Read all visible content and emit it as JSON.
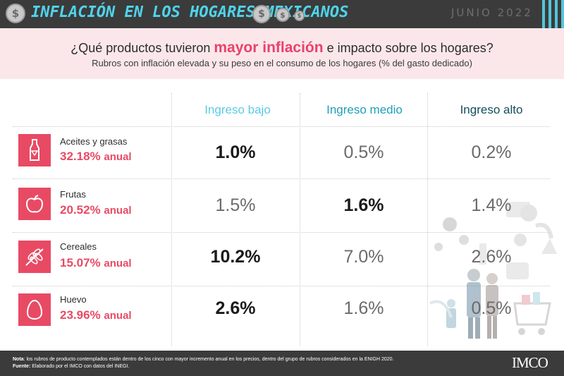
{
  "banner": {
    "title": "INFLACIÓN EN LOS HOGARES MEXICANOS",
    "date": "JUNIO 2022",
    "coin_symbol": "$"
  },
  "question": {
    "before": "¿Qué productos tuvieron",
    "highlight": "mayor inflación",
    "after": "e impacto sobre los hogares?"
  },
  "subtitle": "Rubros con inflación elevada y su peso en el consumo de los hogares (% del gasto dedicado)",
  "columns": [
    {
      "label": "Ingreso bajo",
      "color": "#5ccbe2"
    },
    {
      "label": "Ingreso medio",
      "color": "#1f9fb8"
    },
    {
      "label": "Ingreso alto",
      "color": "#124e5a"
    }
  ],
  "rows": [
    {
      "name": "Aceites y grasas",
      "rate": "32.18%",
      "unit": "anual",
      "icon": "oil-bottle-icon",
      "values": [
        "1.0%",
        "0.5%",
        "0.2%"
      ],
      "highlight": 0
    },
    {
      "name": "Frutas",
      "rate": "20.52%",
      "unit": "anual",
      "icon": "apple-icon",
      "values": [
        "1.5%",
        "1.6%",
        "1.4%"
      ],
      "highlight": 1
    },
    {
      "name": "Cereales",
      "rate": "15.07%",
      "unit": "anual",
      "icon": "wheat-icon",
      "values": [
        "10.2%",
        "7.0%",
        "2.6%"
      ],
      "highlight": 0
    },
    {
      "name": "Huevo",
      "rate": "23.96%",
      "unit": "anual",
      "icon": "egg-icon",
      "values": [
        "2.6%",
        "1.6%",
        "0.5%"
      ],
      "highlight": 0
    }
  ],
  "footer": {
    "note_label": "Nota",
    "note_text": ": los rubros de producto contemplados están dentro de los cinco con mayor incremento anual en los precios, dentro del grupo de rubros considerados en la ENIGH 2020.",
    "source_label": "Fuente:",
    "source_text": " Elaborado por el IMCO  con datos del INEGI.",
    "logo": "IMCO"
  },
  "colors": {
    "accent": "#e84a64",
    "banner": "#3b3b3b",
    "band": "#fbe7ea",
    "title": "#4fd3ea"
  }
}
